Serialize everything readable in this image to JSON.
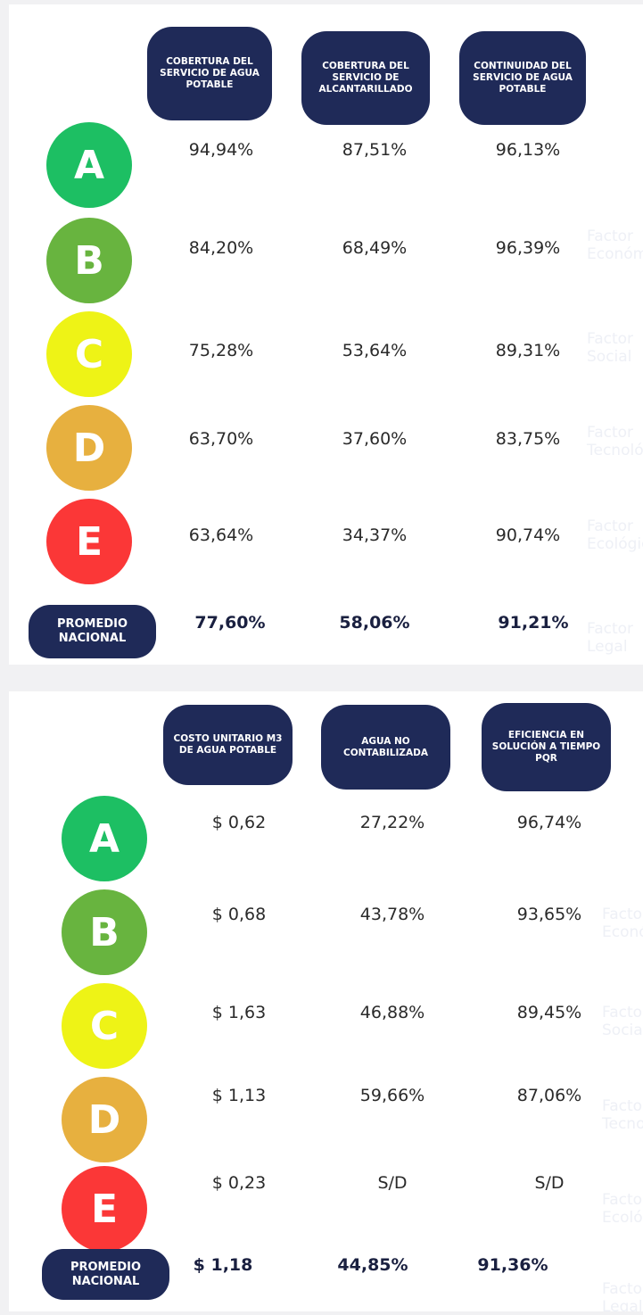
{
  "panels": [
    {
      "headers": [
        "COBERTURA DEL SERVICIO DE AGUA POTABLE",
        "COBERTURA DEL SERVICIO DE ALCANTARILLADO",
        "CONTINUIDAD DEL SERVICIO DE AGUA POTABLE"
      ],
      "rows": [
        {
          "grade": "A",
          "values": [
            "94,94%",
            "87,51%",
            "96,13%"
          ]
        },
        {
          "grade": "B",
          "values": [
            "84,20%",
            "68,49%",
            "96,39%"
          ]
        },
        {
          "grade": "C",
          "values": [
            "75,28%",
            "53,64%",
            "89,31%"
          ]
        },
        {
          "grade": "D",
          "values": [
            "63,70%",
            "37,60%",
            "83,75%"
          ]
        },
        {
          "grade": "E",
          "values": [
            "63,64%",
            "34,37%",
            "90,74%"
          ]
        }
      ],
      "average": {
        "label": "PROMEDIO NACIONAL",
        "values": [
          "77,60%",
          "58,06%",
          "91,21%"
        ]
      },
      "side_labels": [
        "Factor Económico",
        "Factor Social",
        "Factor Tecnológico",
        "Factor Ecológico",
        "Factor Legal"
      ]
    },
    {
      "headers": [
        "COSTO UNITARIO M3 DE AGUA POTABLE",
        "AGUA NO CONTABILIZADA",
        "EFICIENCIA EN SOLUCIÓN A TIEMPO PQR"
      ],
      "rows": [
        {
          "grade": "A",
          "values": [
            "$ 0,62",
            "27,22%",
            "96,74%"
          ]
        },
        {
          "grade": "B",
          "values": [
            "$ 0,68",
            "43,78%",
            "93,65%"
          ]
        },
        {
          "grade": "C",
          "values": [
            "$ 1,63",
            "46,88%",
            "89,45%"
          ]
        },
        {
          "grade": "D",
          "values": [
            "$ 1,13",
            "59,66%",
            "87,06%"
          ]
        },
        {
          "grade": "E",
          "values": [
            "$ 0,23",
            "S/D",
            "S/D"
          ]
        }
      ],
      "average": {
        "label": "PROMEDIO NACIONAL",
        "values": [
          "$ 1,18",
          "44,85%",
          "91,36%"
        ]
      },
      "side_labels": [
        "Factor Económico",
        "Factor Social",
        "Factor Tecnológico",
        "Factor Ecológico",
        "Factor Legal"
      ]
    }
  ]
}
